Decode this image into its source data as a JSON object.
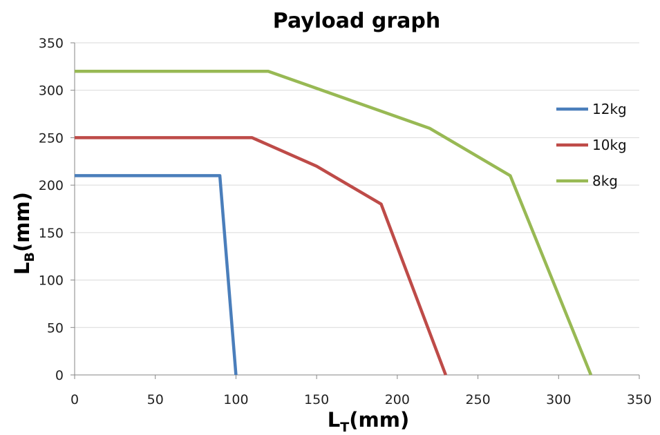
{
  "chart_data": {
    "type": "line",
    "title": "Payload graph",
    "xlabel": "L_T(mm)",
    "ylabel": "L_B(mm)",
    "axis_titles": {
      "x": {
        "main": "L",
        "sub": "T",
        "suffix": "(mm)"
      },
      "y": {
        "main": "L",
        "sub": "B",
        "suffix": "(mm)"
      }
    },
    "xlim": [
      0,
      350
    ],
    "ylim": [
      0,
      350
    ],
    "xticks": [
      0,
      50,
      100,
      150,
      200,
      250,
      300,
      350
    ],
    "yticks": [
      0,
      50,
      100,
      150,
      200,
      250,
      300,
      350
    ],
    "grid": "horizontal",
    "legend_position": "right",
    "series": [
      {
        "name": "12kg",
        "color": "#4a7ebb",
        "points": [
          [
            0,
            210
          ],
          [
            90,
            210
          ],
          [
            100,
            0
          ]
        ]
      },
      {
        "name": "10kg",
        "color": "#be4b48",
        "points": [
          [
            0,
            250
          ],
          [
            110,
            250
          ],
          [
            150,
            220
          ],
          [
            190,
            180
          ],
          [
            230,
            0
          ]
        ]
      },
      {
        "name": "8kg",
        "color": "#98b954",
        "points": [
          [
            0,
            320
          ],
          [
            120,
            320
          ],
          [
            220,
            260
          ],
          [
            270,
            210
          ],
          [
            320,
            0
          ]
        ]
      }
    ]
  }
}
